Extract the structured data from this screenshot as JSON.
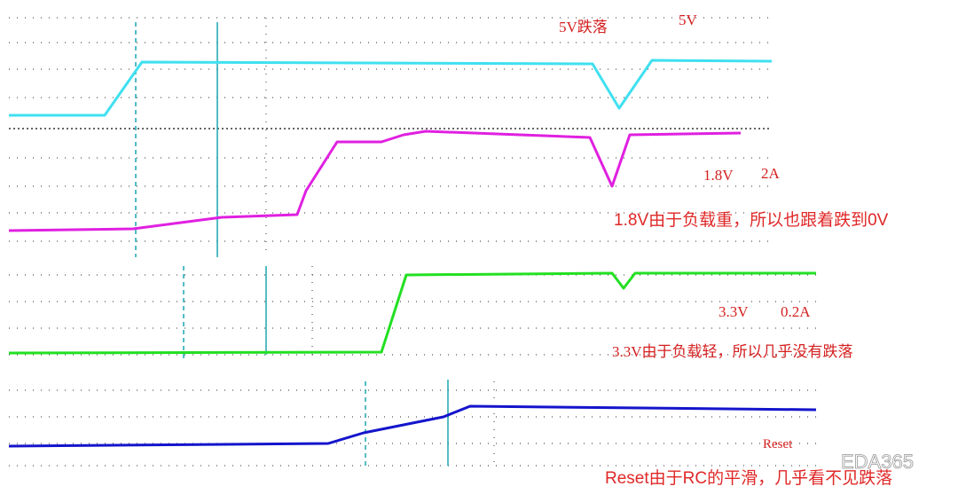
{
  "annotations": {
    "drop_5v": "5V跌落",
    "label_5v": "5V",
    "label_1v8": "1.8V",
    "load_1v8": "2A",
    "note_1v8": "1.8V由于负载重，所以也跟着跌到0V",
    "label_3v3": "3.3V",
    "load_3v3": "0.2A",
    "note_3v3": "3.3V由于负载轻，所以几乎没有跌落",
    "label_reset": "Reset",
    "note_reset": "Reset由于RC的平滑，几乎看不见跌落"
  },
  "watermark": "EDA365"
}
